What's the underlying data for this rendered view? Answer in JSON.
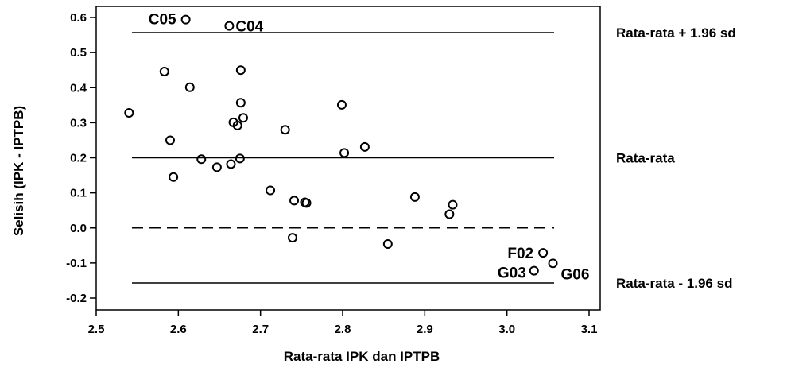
{
  "chart_data": {
    "type": "scatter",
    "xlabel": "Rata-rata IPK dan IPTPB",
    "ylabel": "Selisih (IPK - IPTPB)",
    "xlim": [
      2.5,
      3.1
    ],
    "ylim": [
      -0.2,
      0.6
    ],
    "x_ticks": [
      "2.5",
      "2.6",
      "2.7",
      "2.8",
      "2.9",
      "3.0",
      "3.1"
    ],
    "y_ticks": [
      "0.6",
      "0.5",
      "0.4",
      "0.3",
      "0.2",
      "0.1",
      "0.0",
      "-0.1",
      "-0.2"
    ],
    "grid": false,
    "reference_lines": [
      {
        "label": "Rata-rata + 1.96 sd",
        "y": 0.557,
        "style": "solid"
      },
      {
        "label": "Rata-rata",
        "y": 0.2,
        "style": "solid"
      },
      {
        "label": "",
        "y": 0.0,
        "style": "dashed"
      },
      {
        "label": "Rata-rata - 1.96 sd",
        "y": -0.157,
        "style": "solid"
      }
    ],
    "points": [
      {
        "x": 2.54,
        "y": 0.328,
        "label": ""
      },
      {
        "x": 2.583,
        "y": 0.446,
        "label": ""
      },
      {
        "x": 2.59,
        "y": 0.25,
        "label": ""
      },
      {
        "x": 2.594,
        "y": 0.145,
        "label": ""
      },
      {
        "x": 2.609,
        "y": 0.594,
        "label": "C05"
      },
      {
        "x": 2.614,
        "y": 0.401,
        "label": ""
      },
      {
        "x": 2.628,
        "y": 0.196,
        "label": ""
      },
      {
        "x": 2.647,
        "y": 0.173,
        "label": ""
      },
      {
        "x": 2.662,
        "y": 0.576,
        "label": "C04"
      },
      {
        "x": 2.664,
        "y": 0.182,
        "label": ""
      },
      {
        "x": 2.667,
        "y": 0.301,
        "label": ""
      },
      {
        "x": 2.672,
        "y": 0.292,
        "label": ""
      },
      {
        "x": 2.675,
        "y": 0.198,
        "label": ""
      },
      {
        "x": 2.676,
        "y": 0.357,
        "label": ""
      },
      {
        "x": 2.676,
        "y": 0.45,
        "label": ""
      },
      {
        "x": 2.679,
        "y": 0.314,
        "label": ""
      },
      {
        "x": 2.712,
        "y": 0.107,
        "label": ""
      },
      {
        "x": 2.73,
        "y": 0.28,
        "label": ""
      },
      {
        "x": 2.739,
        "y": -0.028,
        "label": ""
      },
      {
        "x": 2.741,
        "y": 0.078,
        "label": ""
      },
      {
        "x": 2.754,
        "y": 0.073,
        "label": ""
      },
      {
        "x": 2.756,
        "y": 0.071,
        "label": ""
      },
      {
        "x": 2.799,
        "y": 0.351,
        "label": ""
      },
      {
        "x": 2.802,
        "y": 0.214,
        "label": ""
      },
      {
        "x": 2.827,
        "y": 0.231,
        "label": ""
      },
      {
        "x": 2.855,
        "y": -0.046,
        "label": ""
      },
      {
        "x": 2.888,
        "y": 0.088,
        "label": ""
      },
      {
        "x": 2.93,
        "y": 0.039,
        "label": ""
      },
      {
        "x": 2.934,
        "y": 0.066,
        "label": ""
      },
      {
        "x": 3.033,
        "y": -0.122,
        "label": "G03"
      },
      {
        "x": 3.044,
        "y": -0.071,
        "label": "F02"
      },
      {
        "x": 3.056,
        "y": -0.101,
        "label": "G06"
      }
    ]
  }
}
